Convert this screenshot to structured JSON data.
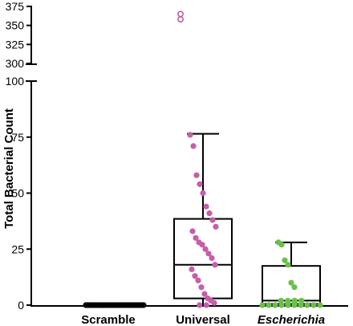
{
  "chart_data": {
    "type": "box",
    "ylabel": "Total Bacterial Count",
    "y_axis": {
      "broken": true,
      "lower_segment": {
        "range": [
          0,
          100
        ],
        "ticks": [
          0,
          25,
          50,
          75,
          100
        ]
      },
      "upper_segment": {
        "range": [
          300,
          375
        ],
        "ticks": [
          300,
          325,
          350,
          375
        ]
      }
    },
    "colors": {
      "Scramble": "#000000",
      "Universal": "#c55fa9",
      "Escherichia": "#6cc04a",
      "box": "#000000"
    },
    "series": [
      {
        "name": "Scramble",
        "label_style": "bold",
        "box": {
          "min": 0,
          "q1": 0,
          "median": 0,
          "q3": 0,
          "max": 0
        },
        "points": [
          0,
          0,
          0,
          0,
          0,
          0,
          0,
          0,
          0,
          0,
          0,
          0,
          0,
          0,
          0,
          0,
          0,
          0,
          0,
          0,
          0,
          0,
          0,
          0,
          0,
          0,
          0,
          0,
          0,
          0
        ],
        "outliers": []
      },
      {
        "name": "Universal",
        "label_style": "bold",
        "box": {
          "min": 0,
          "q1": 3,
          "median": 18,
          "q3": 38.5,
          "max": 76.5
        },
        "points": [
          76,
          71,
          58,
          54,
          50,
          44,
          41,
          38,
          35,
          33,
          30,
          28,
          27,
          25,
          23,
          21,
          18,
          16,
          13,
          11,
          8,
          5,
          3,
          2,
          1,
          0,
          0
        ],
        "outliers": [
          365,
          358
        ]
      },
      {
        "name": "Escherichia",
        "label_style": "bold-italic",
        "box": {
          "min": 0,
          "q1": 0.5,
          "median": 2,
          "q3": 17.5,
          "max": 28
        },
        "points": [
          28,
          27,
          20,
          18,
          10,
          8,
          2,
          2,
          2,
          2,
          1,
          1,
          0,
          0,
          0,
          0,
          0,
          0,
          0,
          0,
          0,
          0
        ],
        "outliers": []
      }
    ]
  }
}
